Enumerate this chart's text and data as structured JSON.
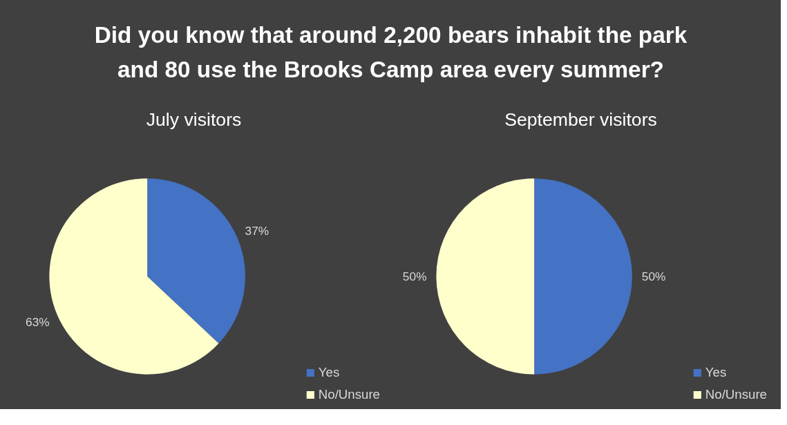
{
  "chart_data": [
    {
      "type": "other",
      "title": "Did you know that around 2,200 bears inhabit the park and 80 use the Brooks Camp area every summer?"
    },
    {
      "type": "pie",
      "title": "July visitors",
      "categories": [
        "Yes",
        "No/Unsure"
      ],
      "values": [
        37,
        63
      ],
      "colors": [
        "#4472c4",
        "#ffffcc"
      ],
      "value_labels": [
        "37%",
        "63%"
      ],
      "legend": "right"
    },
    {
      "type": "pie",
      "title": "September visitors",
      "categories": [
        "Yes",
        "No/Unsure"
      ],
      "values": [
        50,
        50
      ],
      "colors": [
        "#4472c4",
        "#ffffcc"
      ],
      "value_labels": [
        "50%",
        "50%"
      ],
      "legend": "right"
    }
  ]
}
